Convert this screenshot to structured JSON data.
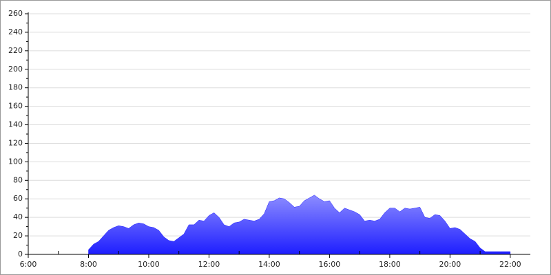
{
  "chart_data": {
    "type": "area",
    "x": [
      480,
      490,
      500,
      510,
      520,
      530,
      540,
      550,
      560,
      570,
      580,
      590,
      600,
      610,
      620,
      630,
      640,
      650,
      660,
      670,
      680,
      690,
      700,
      710,
      720,
      730,
      740,
      750,
      760,
      770,
      780,
      790,
      800,
      810,
      820,
      830,
      840,
      850,
      860,
      870,
      880,
      890,
      900,
      910,
      920,
      930,
      940,
      950,
      960,
      970,
      980,
      990,
      1000,
      1010,
      1020,
      1030,
      1040,
      1050,
      1060,
      1070,
      1080,
      1090,
      1100,
      1110,
      1120,
      1130,
      1140,
      1150,
      1160,
      1170,
      1180,
      1190,
      1200,
      1210,
      1220,
      1230,
      1240,
      1250,
      1260,
      1270,
      1280,
      1290,
      1300,
      1310,
      1320
    ],
    "values": [
      5,
      11,
      14,
      20,
      26,
      29,
      31,
      30,
      28,
      32,
      34,
      33,
      30,
      29,
      26,
      19,
      15,
      14,
      18,
      22,
      32,
      32,
      37,
      36,
      42,
      45,
      40,
      32,
      30,
      34,
      35,
      38,
      37,
      36,
      38,
      44,
      57,
      58,
      61,
      60,
      56,
      51,
      52,
      58,
      61,
      64,
      60,
      57,
      58,
      50,
      45,
      50,
      48,
      46,
      43,
      36,
      37,
      36,
      38,
      45,
      50,
      50,
      46,
      50,
      49,
      50,
      51,
      40,
      39,
      43,
      42,
      36,
      28,
      29,
      27,
      22,
      17,
      14,
      7,
      3,
      3,
      3,
      3,
      3,
      3
    ],
    "color_top": "#8c8cff",
    "color_bottom": "#1e1eff",
    "xlim": [
      360,
      1360
    ],
    "xticks": [
      {
        "value": 360,
        "label": "6:00"
      },
      {
        "value": 480,
        "label": "8:00"
      },
      {
        "value": 600,
        "label": "10:00"
      },
      {
        "value": 720,
        "label": "12:00"
      },
      {
        "value": 840,
        "label": "14:00"
      },
      {
        "value": 960,
        "label": "16:00"
      },
      {
        "value": 1080,
        "label": "18:00"
      },
      {
        "value": 1200,
        "label": "20:00"
      },
      {
        "value": 1320,
        "label": "22:00"
      }
    ],
    "ylim": [
      0,
      260
    ],
    "yticks": [
      0,
      20,
      40,
      60,
      80,
      100,
      120,
      140,
      160,
      180,
      200,
      220,
      240,
      260
    ],
    "grid": true
  }
}
